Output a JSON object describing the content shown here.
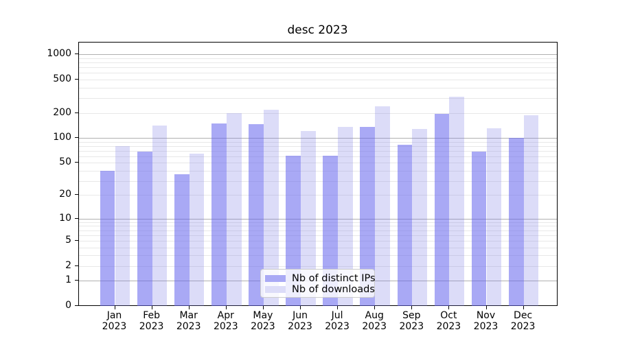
{
  "title": "desc 2023",
  "chart_data": {
    "type": "bar",
    "title": "desc 2023",
    "categories": [
      "Jan 2023",
      "Feb 2023",
      "Mar 2023",
      "Apr 2023",
      "May 2023",
      "Jun 2023",
      "Jul 2023",
      "Aug 2023",
      "Sep 2023",
      "Oct 2023",
      "Nov 2023",
      "Dec 2023"
    ],
    "series": [
      {
        "name": "Nb of distinct IPs",
        "color": "#a9a9f5",
        "values": [
          40,
          68,
          36,
          148,
          146,
          61,
          61,
          137,
          82,
          195,
          69,
          100
        ]
      },
      {
        "name": "Nb of downloads",
        "color": "#dcdcf8",
        "values": [
          79,
          141,
          64,
          197,
          220,
          122,
          136,
          238,
          127,
          312,
          130,
          188
        ]
      }
    ],
    "xlabel": "",
    "ylabel": "",
    "yscale": "log1p",
    "y_ticks": [
      0,
      1,
      2,
      5,
      10,
      20,
      50,
      100,
      200,
      500,
      1000
    ],
    "ylim": [
      0,
      1387
    ],
    "grid": {
      "horizontal": true,
      "major_at": [
        1,
        10,
        100,
        1000
      ],
      "minor_decades": true
    },
    "legend_position": "lower center",
    "colors": {
      "major_grid": "#b0b0b0",
      "minor_grid": "#e8e8e8",
      "spine": "#000000",
      "background": "#ffffff"
    }
  }
}
